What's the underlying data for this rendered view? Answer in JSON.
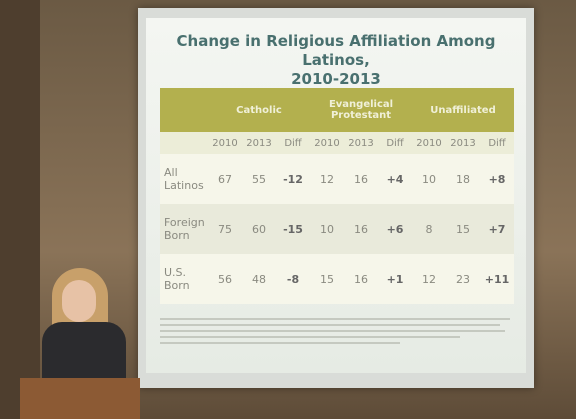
{
  "slide": {
    "title": [
      "Change in Religious Affiliation Among Latinos,",
      "2010-2013"
    ],
    "table": {
      "groups": [
        "Catholic",
        "Evangelical Protestant",
        "Unaffiliated"
      ],
      "subheaders": [
        "2010",
        "2013",
        "Diff",
        "2010",
        "2013",
        "Diff",
        "2010",
        "2013",
        "Diff"
      ],
      "rows": [
        {
          "label": "All Latinos",
          "cells": [
            "67",
            "55",
            "-12",
            "12",
            "16",
            "+4",
            "10",
            "18",
            "+8"
          ]
        },
        {
          "label": "Foreign Born",
          "cells": [
            "75",
            "60",
            "-15",
            "10",
            "16",
            "+6",
            "8",
            "15",
            "+7"
          ]
        },
        {
          "label": "U.S. Born",
          "cells": [
            "56",
            "48",
            "-8",
            "15",
            "16",
            "+1",
            "12",
            "23",
            "+11"
          ]
        }
      ]
    }
  }
}
